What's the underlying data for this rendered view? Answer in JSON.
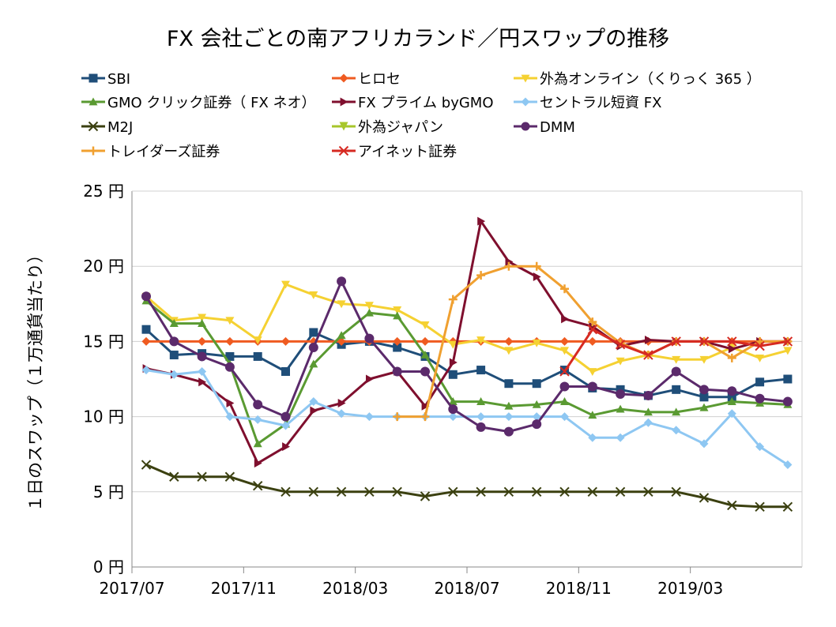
{
  "chart_data": {
    "type": "line",
    "title": "FX 会社ごとの南アフリカランド／円スワップの推移",
    "ylabel": "１日のスワップ（１万通貨当たり）",
    "xlabel": "",
    "ylim": [
      0,
      25
    ],
    "yticks": [
      0,
      5,
      10,
      15,
      20,
      25
    ],
    "ytick_labels": [
      "0 円",
      "5 円",
      "10 円",
      "15 円",
      "20 円",
      "25 円"
    ],
    "x": [
      "2017/07",
      "2017/08",
      "2017/09",
      "2017/10",
      "2017/11",
      "2017/12",
      "2018/01",
      "2018/02",
      "2018/03",
      "2018/04",
      "2018/05",
      "2018/06",
      "2018/07",
      "2018/08",
      "2018/09",
      "2018/10",
      "2018/11",
      "2018/12",
      "2019/01",
      "2019/02",
      "2019/03",
      "2019/04",
      "2019/05",
      "2019/06"
    ],
    "xtick_labels": [
      "2017/07",
      "2017/11",
      "2018/03",
      "2018/07",
      "2018/11",
      "2019/03"
    ],
    "grid": "horizontal",
    "legend_position": "top",
    "series": [
      {
        "name": "SBI",
        "color": "#1f4e79",
        "marker": "square",
        "values": [
          15.8,
          14.1,
          14.2,
          14.0,
          14.0,
          13.0,
          15.6,
          14.8,
          15.0,
          14.6,
          14.0,
          12.8,
          13.1,
          12.2,
          12.2,
          13.1,
          11.9,
          11.8,
          11.4,
          11.8,
          11.3,
          11.3,
          12.3,
          12.5
        ]
      },
      {
        "name": "ヒロセ",
        "color": "#ef5b21",
        "marker": "diamond",
        "values": [
          15,
          15,
          15,
          15,
          15,
          15,
          15,
          15,
          15,
          15,
          15,
          15,
          15,
          15,
          15,
          15,
          15,
          15,
          15,
          15,
          15,
          15,
          15,
          15
        ]
      },
      {
        "name": "外為オンライン（くりっく 365 ）",
        "color": "#f5d132",
        "marker": "triangle-down",
        "values": [
          18.0,
          16.4,
          16.6,
          16.4,
          15.1,
          18.8,
          18.1,
          17.5,
          17.4,
          17.1,
          16.1,
          14.8,
          15.1,
          14.4,
          14.9,
          14.4,
          13.0,
          13.7,
          14.1,
          13.8,
          13.8,
          14.6,
          13.9,
          14.4
        ]
      },
      {
        "name": "GMO クリック証券（ FX ネオ）",
        "color": "#5a9a32",
        "marker": "triangle",
        "values": [
          17.7,
          16.2,
          16.2,
          13.5,
          8.2,
          9.5,
          13.5,
          15.4,
          16.9,
          16.7,
          14.1,
          11.0,
          11.0,
          10.7,
          10.8,
          11.0,
          10.1,
          10.5,
          10.3,
          10.3,
          10.6,
          11.0,
          10.9,
          10.8
        ]
      },
      {
        "name": "FX プライム byGMO",
        "color": "#7f0f2e",
        "marker": "triangle-right",
        "values": [
          13.2,
          12.8,
          12.3,
          10.9,
          6.9,
          8.0,
          10.4,
          10.9,
          12.5,
          13.0,
          10.7,
          13.6,
          23.0,
          20.3,
          19.3,
          16.5,
          16.0,
          14.7,
          15.1,
          15.0,
          15.0,
          14.5,
          15.0,
          15.0
        ]
      },
      {
        "name": "セントラル短資 FX",
        "color": "#8ec7f2",
        "marker": "diamond",
        "values": [
          13.1,
          12.8,
          13.0,
          10.0,
          9.8,
          9.4,
          11.0,
          10.2,
          10.0,
          10.0,
          10.0,
          10.0,
          10.0,
          10.0,
          10.0,
          10.0,
          8.6,
          8.6,
          9.6,
          9.1,
          8.2,
          10.2,
          8.0,
          6.8
        ]
      },
      {
        "name": "M2J",
        "color": "#3b4010",
        "marker": "x",
        "values": [
          6.8,
          6.0,
          6.0,
          6.0,
          5.4,
          5.0,
          5.0,
          5.0,
          5.0,
          5.0,
          4.7,
          5.0,
          5.0,
          5.0,
          5.0,
          5.0,
          5.0,
          5.0,
          5.0,
          5.0,
          4.6,
          4.1,
          4.0,
          4.0
        ]
      },
      {
        "name": "外為ジャパン",
        "color": "#a7c62b",
        "marker": "x-tri",
        "values": [
          null,
          null,
          null,
          null,
          null,
          null,
          null,
          null,
          null,
          null,
          null,
          null,
          null,
          null,
          null,
          null,
          null,
          null,
          null,
          null,
          null,
          null,
          null,
          null
        ]
      },
      {
        "name": "DMM",
        "color": "#5b2a6b",
        "marker": "circle",
        "values": [
          18.0,
          15.0,
          14.0,
          13.3,
          10.8,
          10.0,
          14.6,
          19.0,
          15.2,
          13.0,
          13.0,
          10.5,
          9.3,
          9.0,
          9.5,
          12.0,
          12.0,
          11.5,
          11.4,
          13.0,
          11.8,
          11.7,
          11.2,
          11.0
        ]
      },
      {
        "name": "トレイダーズ証券",
        "color": "#f0a030",
        "marker": "plus",
        "values": [
          null,
          null,
          null,
          null,
          null,
          null,
          null,
          null,
          null,
          10.0,
          10.0,
          17.8,
          19.4,
          20.0,
          20.0,
          18.5,
          16.3,
          14.9,
          14.1,
          15.0,
          15.0,
          13.9,
          15.0,
          15.0
        ]
      },
      {
        "name": "アイネット証券",
        "color": "#d62a22",
        "marker": "x",
        "values": [
          null,
          null,
          null,
          null,
          null,
          null,
          null,
          null,
          null,
          null,
          null,
          null,
          null,
          null,
          null,
          13.0,
          15.8,
          14.8,
          14.1,
          15.0,
          15.0,
          15.0,
          14.7,
          15.0
        ]
      }
    ]
  }
}
